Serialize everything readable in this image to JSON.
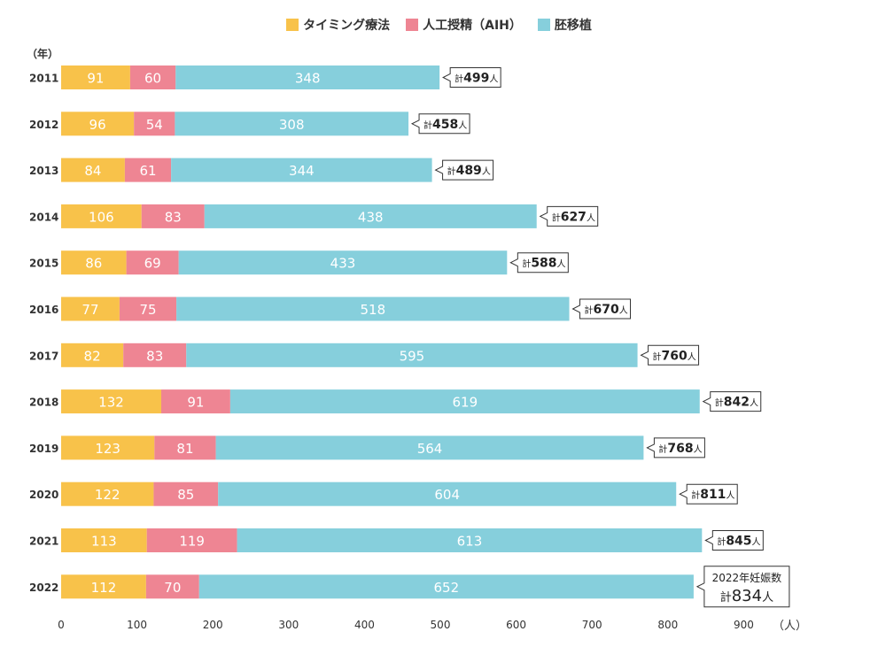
{
  "chart_data": {
    "type": "bar",
    "orientation": "horizontal",
    "stacked": true,
    "categories": [
      "2011",
      "2012",
      "2013",
      "2014",
      "2015",
      "2016",
      "2017",
      "2018",
      "2019",
      "2020",
      "2021",
      "2022"
    ],
    "series": [
      {
        "name": "タイミング療法",
        "color": "#f8c24a",
        "values": [
          91,
          96,
          84,
          106,
          86,
          77,
          82,
          132,
          123,
          122,
          113,
          112
        ]
      },
      {
        "name": "人工授精（AIH）",
        "color": "#ee8593",
        "values": [
          60,
          54,
          61,
          83,
          69,
          75,
          83,
          91,
          81,
          85,
          119,
          70
        ]
      },
      {
        "name": "胚移植",
        "color": "#86cfdc",
        "values": [
          348,
          308,
          344,
          438,
          433,
          518,
          595,
          619,
          564,
          604,
          613,
          652
        ]
      }
    ],
    "totals": [
      "499",
      "458",
      "489",
      "627",
      "588",
      "670",
      "760",
      "842",
      "768",
      "811",
      "845",
      "834"
    ],
    "total_prefix": "計",
    "total_suffix": "人",
    "last_total_note": "2022年妊娠数",
    "xlim": [
      0,
      900
    ],
    "xticks": [
      0,
      100,
      200,
      300,
      400,
      500,
      600,
      700,
      800,
      900
    ],
    "ylabel": "（年）",
    "xunit": "（人）",
    "legend_position": "top-center",
    "grid": false
  }
}
